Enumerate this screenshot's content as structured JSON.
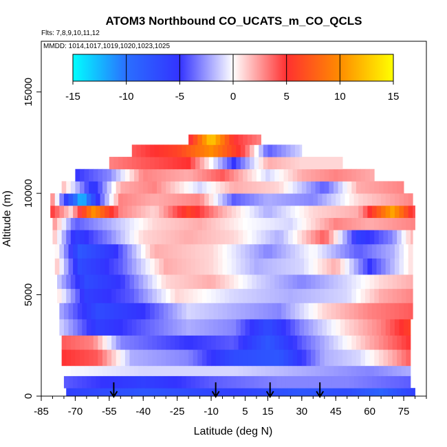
{
  "chart_data": {
    "type": "heatmap",
    "title": "ATOM3 Northbound CO_UCATS_m_CO_QCLS",
    "subtitle_flights": "Flts: 7,8,9,10,11,12",
    "subtitle_dates": "MMDD: 1014,1017,1019,1020,1023,1025",
    "xlabel": "Latitude (deg N)",
    "ylabel": "Altitude (m)",
    "xlim": [
      -85,
      85
    ],
    "ylim": [
      0,
      17500
    ],
    "x_ticks": [
      -85,
      -70,
      -55,
      -40,
      -25,
      -10,
      5,
      15,
      30,
      45,
      60,
      75
    ],
    "x_tick_labels": [
      "-85",
      "-70",
      "-55",
      "-40",
      "-25",
      "-10",
      "5",
      "15",
      "30",
      "45",
      "60",
      "75"
    ],
    "y_ticks": [
      0,
      5000,
      10000,
      15000
    ],
    "y_tick_labels": [
      "0",
      "5000",
      "10000",
      "15000"
    ],
    "colorbar": {
      "range": [
        -15,
        15
      ],
      "ticks": [
        -15,
        -10,
        -5,
        0,
        5,
        10,
        15
      ],
      "tick_labels": [
        "-15",
        "-10",
        "-5",
        "0",
        "5",
        "10",
        "15"
      ],
      "stops": [
        {
          "value": -15,
          "color": "#00ffff"
        },
        {
          "value": -10,
          "color": "#2a6fff"
        },
        {
          "value": -5,
          "color": "#3333ff"
        },
        {
          "value": 0,
          "color": "#ffffff"
        },
        {
          "value": 5,
          "color": "#ff3030"
        },
        {
          "value": 10,
          "color": "#ff8c00"
        },
        {
          "value": 15,
          "color": "#ffff00"
        }
      ]
    },
    "arrow_latitudes": [
      -53,
      -8,
      16,
      38
    ],
    "layers": [
      {
        "y0": 0,
        "y1": 400,
        "x0": -74,
        "x1": 80,
        "vals": [
          [
            -74,
            -6
          ],
          [
            -40,
            -8
          ],
          [
            0,
            -6
          ],
          [
            30,
            -8
          ],
          [
            50,
            -7
          ],
          [
            65,
            -9
          ],
          [
            80,
            -6
          ]
        ]
      },
      {
        "y0": 400,
        "y1": 1000,
        "x0": -75,
        "x1": 78,
        "vals": [
          [
            -75,
            -4
          ],
          [
            -40,
            -6
          ],
          [
            -10,
            -4
          ],
          [
            20,
            -3
          ],
          [
            50,
            -3
          ],
          [
            78,
            -4
          ]
        ]
      },
      {
        "y0": 1000,
        "y1": 1500,
        "x0": -76,
        "x1": 78,
        "vals": [
          [
            -76,
            0
          ],
          [
            -40,
            -1
          ],
          [
            0,
            -1
          ],
          [
            30,
            -2
          ],
          [
            60,
            -3
          ],
          [
            78,
            -2
          ]
        ]
      },
      {
        "y0": 1500,
        "y1": 2300,
        "x0": -76,
        "x1": 78,
        "vals": [
          [
            -76,
            5
          ],
          [
            -60,
            4
          ],
          [
            -45,
            -2
          ],
          [
            -20,
            -3
          ],
          [
            0,
            -7
          ],
          [
            20,
            -8
          ],
          [
            40,
            -2
          ],
          [
            55,
            -1
          ],
          [
            70,
            2
          ],
          [
            78,
            4
          ]
        ]
      },
      {
        "y0": 2300,
        "y1": 3000,
        "x0": -76,
        "x1": 78,
        "vals": [
          [
            -76,
            4
          ],
          [
            -62,
            3
          ],
          [
            -50,
            -3
          ],
          [
            -20,
            -5
          ],
          [
            0,
            -4
          ],
          [
            15,
            -8
          ],
          [
            30,
            -4
          ],
          [
            45,
            -1
          ],
          [
            60,
            2
          ],
          [
            78,
            5
          ]
        ]
      },
      {
        "y0": 3000,
        "y1": 3800,
        "x0": -77,
        "x1": 78,
        "vals": [
          [
            -77,
            -1
          ],
          [
            -60,
            -6
          ],
          [
            -40,
            -4
          ],
          [
            -20,
            -2
          ],
          [
            0,
            -3
          ],
          [
            15,
            -7
          ],
          [
            30,
            -3
          ],
          [
            50,
            1
          ],
          [
            65,
            3
          ],
          [
            78,
            6
          ]
        ]
      },
      {
        "y0": 3800,
        "y1": 4600,
        "x0": -77,
        "x1": 79,
        "vals": [
          [
            -77,
            -2
          ],
          [
            -60,
            -7
          ],
          [
            -40,
            -5
          ],
          [
            -20,
            -1
          ],
          [
            0,
            -2
          ],
          [
            20,
            -3
          ],
          [
            40,
            1
          ],
          [
            60,
            3
          ],
          [
            79,
            4
          ]
        ]
      },
      {
        "y0": 4600,
        "y1": 5300,
        "x0": -78,
        "x1": 79,
        "vals": [
          [
            -78,
            1
          ],
          [
            -65,
            -6
          ],
          [
            -45,
            -4
          ],
          [
            -25,
            1
          ],
          [
            0,
            -1
          ],
          [
            25,
            -2
          ],
          [
            50,
            -1
          ],
          [
            65,
            2
          ],
          [
            79,
            3
          ]
        ]
      },
      {
        "y0": 5300,
        "y1": 6000,
        "x0": -78,
        "x1": 79,
        "vals": [
          [
            -78,
            -1
          ],
          [
            -65,
            -7
          ],
          [
            -50,
            -5
          ],
          [
            -30,
            1
          ],
          [
            -10,
            2
          ],
          [
            10,
            -1
          ],
          [
            30,
            -3
          ],
          [
            50,
            -1
          ],
          [
            65,
            1
          ],
          [
            79,
            2
          ]
        ]
      },
      {
        "y0": 6000,
        "y1": 6800,
        "x0": -79,
        "x1": 79,
        "vals": [
          [
            -79,
            2
          ],
          [
            -68,
            -7
          ],
          [
            -50,
            -4
          ],
          [
            -30,
            2
          ],
          [
            -10,
            1
          ],
          [
            10,
            -2
          ],
          [
            30,
            -1
          ],
          [
            45,
            2
          ],
          [
            60,
            -5
          ],
          [
            79,
            1
          ]
        ]
      },
      {
        "y0": 6800,
        "y1": 7500,
        "x0": -79,
        "x1": 79,
        "vals": [
          [
            -79,
            1
          ],
          [
            -68,
            -8
          ],
          [
            -52,
            -5
          ],
          [
            -35,
            2
          ],
          [
            -10,
            1
          ],
          [
            15,
            -3
          ],
          [
            35,
            0
          ],
          [
            55,
            -4
          ],
          [
            70,
            -2
          ],
          [
            79,
            1
          ]
        ]
      },
      {
        "y0": 7500,
        "y1": 8200,
        "x0": -80,
        "x1": 79,
        "vals": [
          [
            -80,
            2
          ],
          [
            -70,
            -6
          ],
          [
            -55,
            -3
          ],
          [
            -40,
            1
          ],
          [
            -20,
            2
          ],
          [
            0,
            1
          ],
          [
            20,
            -2
          ],
          [
            40,
            4
          ],
          [
            55,
            -6
          ],
          [
            70,
            -3
          ],
          [
            79,
            2
          ]
        ]
      },
      {
        "y0": 8200,
        "y1": 8800,
        "x0": -80,
        "x1": 80,
        "vals": [
          [
            -80,
            3
          ],
          [
            -70,
            -4
          ],
          [
            -55,
            -2
          ],
          [
            -35,
            1
          ],
          [
            -15,
            2
          ],
          [
            5,
            0
          ],
          [
            25,
            -1
          ],
          [
            45,
            3
          ],
          [
            60,
            2
          ],
          [
            80,
            3
          ]
        ]
      },
      {
        "y0": 8800,
        "y1": 9400,
        "x0": -81,
        "x1": 80,
        "vals": [
          [
            -81,
            5
          ],
          [
            -72,
            1
          ],
          [
            -62,
            10
          ],
          [
            -50,
            3
          ],
          [
            -35,
            1
          ],
          [
            -20,
            6
          ],
          [
            -5,
            2
          ],
          [
            15,
            -2
          ],
          [
            35,
            1
          ],
          [
            55,
            2
          ],
          [
            70,
            11
          ],
          [
            80,
            4
          ]
        ]
      },
      {
        "y0": 9400,
        "y1": 10000,
        "x0": -81,
        "x1": 79,
        "vals": [
          [
            -81,
            4
          ],
          [
            -74,
            -6
          ],
          [
            -67,
            -13
          ],
          [
            -60,
            -5
          ],
          [
            -50,
            3
          ],
          [
            -35,
            2
          ],
          [
            -15,
            3
          ],
          [
            0,
            -4
          ],
          [
            15,
            -2
          ],
          [
            35,
            -3
          ],
          [
            55,
            1
          ],
          [
            79,
            3
          ]
        ]
      },
      {
        "y0": 10000,
        "y1": 10600,
        "x0": -76,
        "x1": 75,
        "vals": [
          [
            -76,
            2
          ],
          [
            -62,
            -6
          ],
          [
            -50,
            2
          ],
          [
            -35,
            3
          ],
          [
            -15,
            -1
          ],
          [
            0,
            2
          ],
          [
            20,
            1
          ],
          [
            40,
            -4
          ],
          [
            55,
            2
          ],
          [
            75,
            3
          ]
        ]
      },
      {
        "y0": 10600,
        "y1": 11200,
        "x0": -70,
        "x1": 62,
        "vals": [
          [
            -70,
            -5
          ],
          [
            -55,
            -3
          ],
          [
            -40,
            3
          ],
          [
            -20,
            2
          ],
          [
            -5,
            4
          ],
          [
            15,
            -1
          ],
          [
            30,
            2
          ],
          [
            45,
            3
          ],
          [
            62,
            2
          ]
        ]
      },
      {
        "y0": 11200,
        "y1": 11800,
        "x0": -55,
        "x1": 48,
        "vals": [
          [
            -55,
            3
          ],
          [
            -40,
            4
          ],
          [
            -20,
            5
          ],
          [
            0,
            -5
          ],
          [
            15,
            2
          ],
          [
            30,
            1
          ],
          [
            48,
            1
          ]
        ]
      },
      {
        "y0": 11800,
        "y1": 12400,
        "x0": -45,
        "x1": 30,
        "vals": [
          [
            -45,
            4
          ],
          [
            -25,
            6
          ],
          [
            -10,
            10
          ],
          [
            5,
            4
          ],
          [
            15,
            -4
          ],
          [
            30,
            -1
          ]
        ]
      },
      {
        "y0": 12400,
        "y1": 12900,
        "x0": -20,
        "x1": 12,
        "vals": [
          [
            -20,
            4
          ],
          [
            -10,
            13
          ],
          [
            0,
            5
          ],
          [
            12,
            3
          ]
        ]
      }
    ]
  }
}
